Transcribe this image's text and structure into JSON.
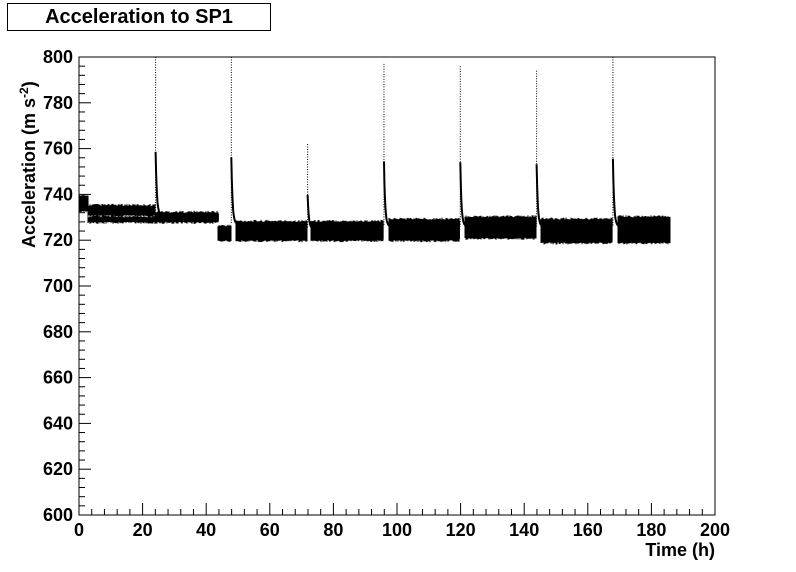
{
  "chart_data": {
    "type": "scatter",
    "title": "Acceleration to SP1",
    "xlabel": "Time (h)",
    "ylabel": "Acceleration (m s",
    "ylabel_sup": "-2",
    "ylabel_close": ")",
    "xlim": [
      0,
      200
    ],
    "ylim": [
      600,
      800
    ],
    "x_ticks": [
      0,
      20,
      40,
      60,
      80,
      100,
      120,
      140,
      160,
      180,
      200
    ],
    "y_ticks": [
      600,
      620,
      640,
      660,
      680,
      700,
      720,
      740,
      760,
      780,
      800
    ],
    "grid": false,
    "series_color": "#000000",
    "bands": [
      {
        "x": [
          0,
          3
        ],
        "low": 733,
        "high": 739
      },
      {
        "x": [
          3,
          23.9
        ],
        "low": 731,
        "high": 735
      },
      {
        "x": [
          3,
          23.9
        ],
        "low": 728,
        "high": 730
      },
      {
        "x": [
          24.2,
          44
        ],
        "low": 729,
        "high": 732
      },
      {
        "x": [
          24.2,
          44
        ],
        "low": 728,
        "high": 730
      },
      {
        "x": [
          44,
          47.8
        ],
        "low": 720,
        "high": 726
      },
      {
        "x": [
          49.5,
          71.8
        ],
        "low": 720,
        "high": 728
      },
      {
        "x": [
          73,
          95.8
        ],
        "low": 720,
        "high": 728
      },
      {
        "x": [
          97.5,
          119.8
        ],
        "low": 720,
        "high": 729
      },
      {
        "x": [
          121.5,
          143.8
        ],
        "low": 721,
        "high": 730
      },
      {
        "x": [
          145.5,
          167.8
        ],
        "low": 719,
        "high": 729
      },
      {
        "x": [
          169.5,
          186
        ],
        "low": 719,
        "high": 730
      }
    ],
    "spikes": [
      {
        "x": 24.1,
        "peak": 800,
        "settle": 731
      },
      {
        "x": 47.9,
        "peak": 800,
        "settle": 727
      },
      {
        "x": 71.9,
        "peak": 762,
        "settle": 725
      },
      {
        "x": 95.9,
        "peak": 797,
        "settle": 726
      },
      {
        "x": 119.9,
        "peak": 796,
        "settle": 726
      },
      {
        "x": 143.9,
        "peak": 794,
        "settle": 726
      },
      {
        "x": 167.9,
        "peak": 800,
        "settle": 726
      }
    ]
  }
}
